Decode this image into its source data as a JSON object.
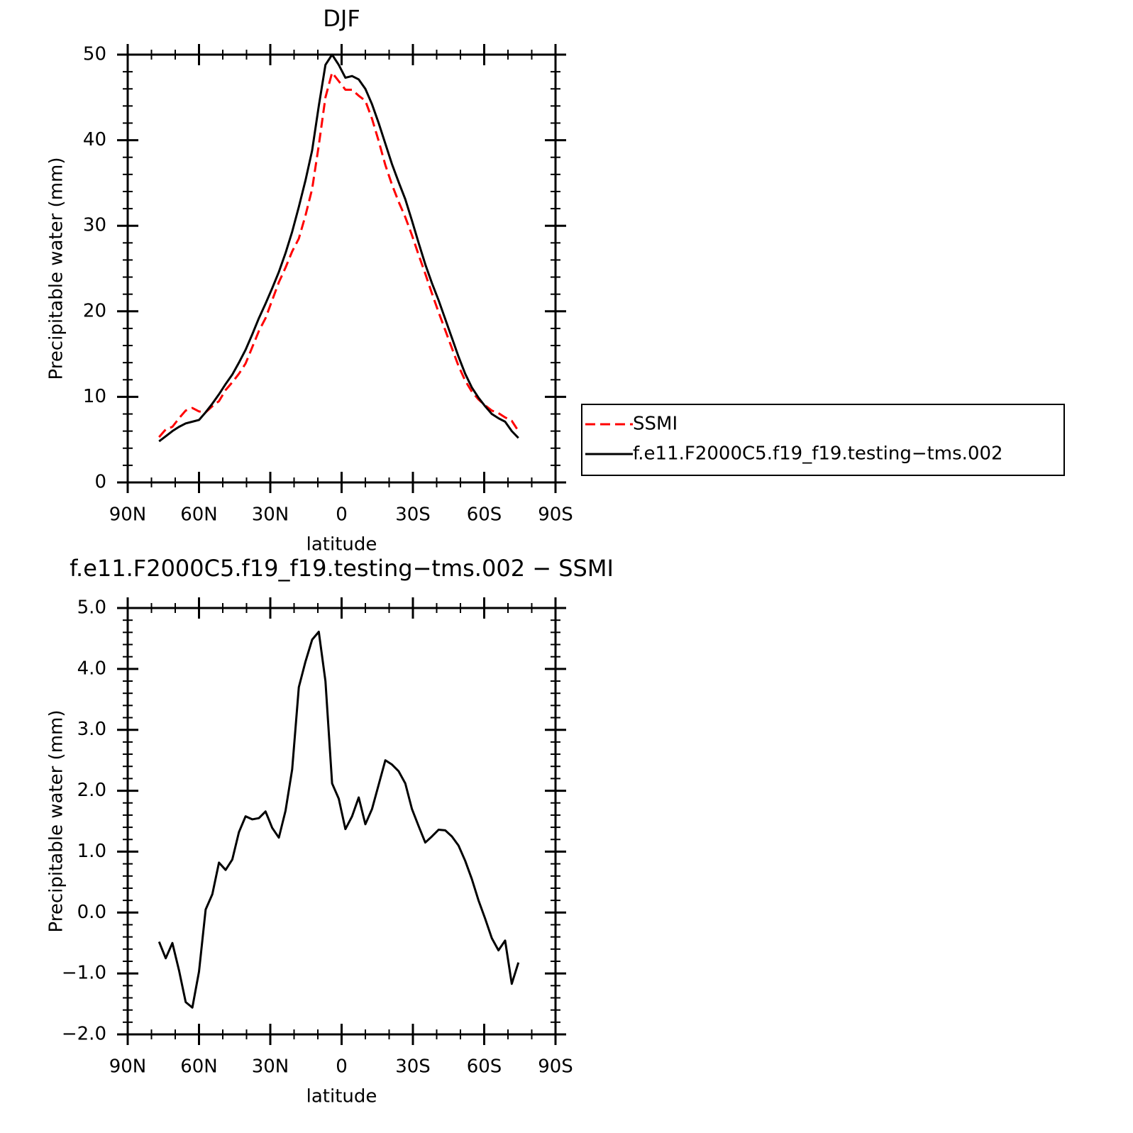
{
  "chart_data": [
    {
      "type": "line",
      "title": "DJF",
      "xlabel": "latitude",
      "ylabel": "Precipitable water (mm)",
      "x": [
        76.8,
        74.0,
        71.2,
        68.4,
        65.6,
        62.8,
        60.0,
        57.2,
        54.4,
        51.6,
        48.8,
        46.0,
        43.2,
        40.4,
        37.6,
        34.8,
        32.0,
        29.2,
        26.4,
        23.6,
        20.8,
        18.0,
        15.2,
        12.4,
        9.6,
        6.8,
        4.0,
        1.2,
        -1.6,
        -4.4,
        -7.2,
        -10.0,
        -12.8,
        -15.6,
        -18.4,
        -21.2,
        -24.0,
        -26.8,
        -29.6,
        -32.4,
        -35.2,
        -38.0,
        -40.8,
        -43.6,
        -46.4,
        -49.2,
        -52.0,
        -54.8,
        -57.6,
        -60.4,
        -63.2,
        -66.0,
        -68.8,
        -71.6,
        -74.4
      ],
      "series": [
        {
          "name": "SSMI",
          "color": "#ff0000",
          "linestyle": "dashed",
          "values": [
            5.3,
            6.2,
            6.5,
            7.5,
            8.4,
            8.7,
            8.3,
            8.2,
            8.9,
            9.5,
            10.8,
            11.7,
            12.7,
            13.9,
            15.8,
            17.7,
            19.2,
            21.3,
            23.4,
            25.1,
            27.0,
            28.5,
            31.2,
            34.3,
            39.4,
            45.0,
            47.9,
            46.9,
            45.9,
            45.9,
            45.2,
            44.6,
            42.5,
            39.9,
            37.1,
            34.8,
            32.8,
            31.0,
            28.9,
            26.6,
            24.4,
            22.1,
            19.9,
            17.8,
            15.7,
            13.6,
            11.9,
            10.6,
            9.7,
            9.0,
            8.4,
            8.1,
            7.6,
            7.2,
            6.0
          ]
        },
        {
          "name": "f.e11.F2000C5.f19_f19.testing−tms.002",
          "color": "#000000",
          "linestyle": "solid",
          "values": [
            4.8,
            5.4,
            6.0,
            6.5,
            6.9,
            7.1,
            7.3,
            8.2,
            9.2,
            10.3,
            11.5,
            12.6,
            14.0,
            15.5,
            17.3,
            19.2,
            20.9,
            22.7,
            24.6,
            26.8,
            29.3,
            32.2,
            35.3,
            38.8,
            44.0,
            48.8,
            50.0,
            48.8,
            47.3,
            47.5,
            47.1,
            46.0,
            44.2,
            42.0,
            39.6,
            37.2,
            35.1,
            33.1,
            30.6,
            28.0,
            25.5,
            23.3,
            21.3,
            19.1,
            16.9,
            14.7,
            12.7,
            11.1,
            9.9,
            8.9,
            8.0,
            7.5,
            7.1,
            6.0,
            5.2
          ]
        }
      ],
      "xlim": [
        90,
        -90
      ],
      "xticks": [
        {
          "value": 90,
          "label": "90N"
        },
        {
          "value": 60,
          "label": "60N"
        },
        {
          "value": 30,
          "label": "30N"
        },
        0,
        {
          "value": -30,
          "label": "30S"
        },
        {
          "value": -60,
          "label": "60S"
        },
        {
          "value": -90,
          "label": "90S"
        }
      ],
      "xminorticks": [
        80,
        70,
        50,
        40,
        20,
        10,
        -10,
        -20,
        -40,
        -50,
        -70,
        -80
      ],
      "ylim": [
        0,
        50
      ],
      "yticks": [
        0,
        10,
        20,
        30,
        40,
        50
      ],
      "yminorticks": [
        2,
        4,
        6,
        8,
        12,
        14,
        16,
        18,
        22,
        24,
        26,
        28,
        32,
        34,
        36,
        38,
        42,
        44,
        46,
        48
      ],
      "legend": "right"
    },
    {
      "type": "line",
      "title": "f.e11.F2000C5.f19_f19.testing−tms.002 − SSMI",
      "xlabel": "latitude",
      "ylabel": "Precipitable water (mm)",
      "x": [
        76.8,
        74.0,
        71.2,
        68.4,
        65.6,
        62.8,
        60.0,
        57.2,
        54.4,
        51.6,
        48.8,
        46.0,
        43.2,
        40.4,
        37.6,
        34.8,
        32.0,
        29.2,
        26.4,
        23.6,
        20.8,
        18.0,
        15.2,
        12.4,
        9.6,
        6.8,
        4.0,
        1.2,
        -1.6,
        -4.4,
        -7.2,
        -10.0,
        -12.8,
        -15.6,
        -18.4,
        -21.2,
        -24.0,
        -26.8,
        -29.6,
        -32.4,
        -35.2,
        -38.0,
        -40.8,
        -43.6,
        -46.4,
        -49.2,
        -52.0,
        -54.8,
        -57.6,
        -60.4,
        -63.2,
        -66.0,
        -68.8,
        -71.6,
        -74.4
      ],
      "color": "#000000",
      "values": [
        -0.48,
        -0.75,
        -0.5,
        -0.95,
        -1.47,
        -1.56,
        -0.97,
        0.05,
        0.3,
        0.82,
        0.7,
        0.87,
        1.32,
        1.58,
        1.53,
        1.55,
        1.66,
        1.39,
        1.23,
        1.67,
        2.35,
        3.7,
        4.12,
        4.48,
        4.61,
        3.8,
        2.12,
        1.87,
        1.37,
        1.58,
        1.89,
        1.45,
        1.7,
        2.1,
        2.5,
        2.43,
        2.32,
        2.12,
        1.7,
        1.42,
        1.15,
        1.25,
        1.36,
        1.35,
        1.25,
        1.1,
        0.85,
        0.55,
        0.2,
        -0.1,
        -0.42,
        -0.62,
        -0.46,
        -1.17,
        -0.82
      ],
      "xlim": [
        90,
        -90
      ],
      "xticks": [
        {
          "value": 90,
          "label": "90N"
        },
        {
          "value": 60,
          "label": "60N"
        },
        {
          "value": 30,
          "label": "30N"
        },
        0,
        {
          "value": -30,
          "label": "30S"
        },
        {
          "value": -60,
          "label": "60S"
        },
        {
          "value": -90,
          "label": "90S"
        }
      ],
      "xminorticks": [
        80,
        70,
        50,
        40,
        20,
        10,
        -10,
        -20,
        -40,
        -50,
        -70,
        -80
      ],
      "ylim": [
        -2,
        5
      ],
      "yticks": [
        {
          "value": -2,
          "label": "−2.0"
        },
        {
          "value": -1,
          "label": "−1.0"
        },
        {
          "value": 0,
          "label": "0.0"
        },
        {
          "value": 1,
          "label": "1.0"
        },
        {
          "value": 2,
          "label": "2.0"
        },
        {
          "value": 3,
          "label": "3.0"
        },
        {
          "value": 4,
          "label": "4.0"
        },
        {
          "value": 5,
          "label": "5.0"
        }
      ],
      "yminorticks": [
        -1.8,
        -1.6,
        -1.4,
        -1.2,
        -0.8,
        -0.6,
        -0.4,
        -0.2,
        0.2,
        0.4,
        0.6,
        0.8,
        1.2,
        1.4,
        1.6,
        1.8,
        2.2,
        2.4,
        2.6,
        2.8,
        3.2,
        3.4,
        3.6,
        3.8,
        4.2,
        4.4,
        4.6,
        4.8
      ]
    }
  ]
}
